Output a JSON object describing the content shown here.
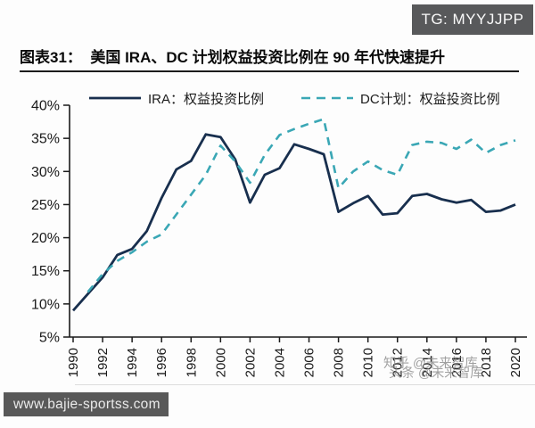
{
  "badge": {
    "text": "TG: MYYJJPP"
  },
  "header": {
    "title": "图表31：  美国 IRA、DC 计划权益投资比例在 90 年代快速提升"
  },
  "watermarks": {
    "zhihu": "知乎 @未来智库",
    "toutiao": "头条 @未来智库",
    "site": "www.bajie-sportss.com"
  },
  "chart_data": {
    "type": "line",
    "title": "美国IRA、DC计划权益投资比例在90年代快速提升",
    "xlabel": "",
    "ylabel": "权益投资比例",
    "ylim": [
      5,
      40
    ],
    "yticks": [
      5,
      10,
      15,
      20,
      25,
      30,
      35,
      40
    ],
    "ytick_labels": [
      "5%",
      "10%",
      "15%",
      "20%",
      "25%",
      "30%",
      "35%",
      "40%"
    ],
    "xlim": [
      1990,
      2020
    ],
    "xticks": [
      1990,
      1992,
      1994,
      1996,
      1998,
      2000,
      2002,
      2004,
      2006,
      2008,
      2010,
      2012,
      2014,
      2016,
      2018,
      2020
    ],
    "grid": false,
    "legend_position": "top",
    "axis_color": "#1a1a1a",
    "series": [
      {
        "name": "IRA：权益投资比例",
        "color": "#182f4e",
        "line_style": "solid",
        "start_year": 1990,
        "values": [
          9.0,
          11.5,
          14.0,
          17.4,
          18.3,
          21.0,
          26.0,
          30.3,
          31.6,
          35.6,
          35.2,
          31.8,
          25.3,
          29.5,
          30.5,
          34.1,
          33.4,
          32.6,
          23.9,
          25.2,
          26.3,
          23.5,
          23.7,
          26.3,
          26.6,
          25.8,
          25.3,
          25.7,
          23.9,
          24.1,
          25.0
        ]
      },
      {
        "name": "DC计划：权益投资比例",
        "color": "#3aa7b5",
        "line_style": "dashed",
        "start_year": 1991,
        "values": [
          11.8,
          14.5,
          16.5,
          17.8,
          19.4,
          20.5,
          23.5,
          26.5,
          29.5,
          33.9,
          31.5,
          28.3,
          32.5,
          35.5,
          36.4,
          37.2,
          37.9,
          27.5,
          30.0,
          31.5,
          30.2,
          29.5,
          34.0,
          34.5,
          34.3,
          33.4,
          34.8,
          32.8,
          34.0,
          34.7
        ]
      }
    ]
  }
}
